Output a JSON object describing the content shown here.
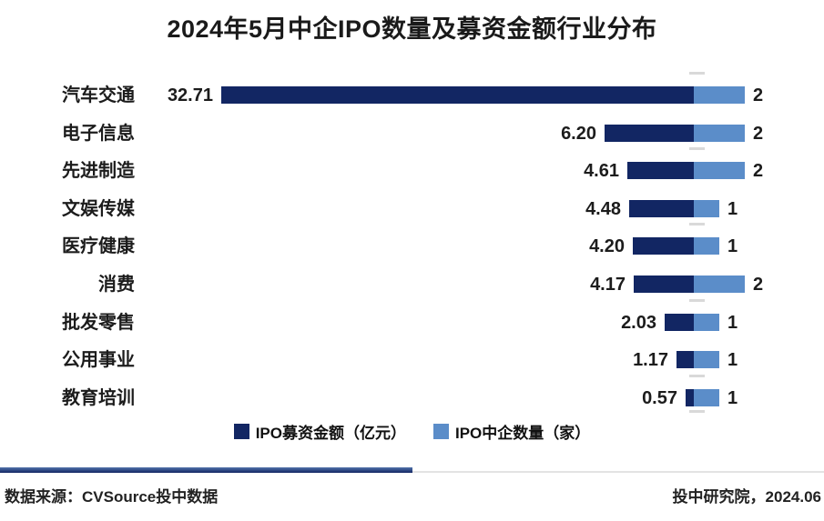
{
  "title": "2024年5月中企IPO数量及募资金额行业分布",
  "colors": {
    "amount_bar": "#122663",
    "count_bar": "#5b8dc9",
    "text": "#1c1c1c",
    "gridline": "#d9d9d9",
    "divider_navy": "#122663",
    "divider_gray": "#e3e3e3"
  },
  "chart_data": {
    "type": "bar",
    "orientation": "horizontal",
    "stacked": true,
    "title": "2024年5月中企IPO数量及募资金额行业分布",
    "categories": [
      "汽车交通",
      "电子信息",
      "先进制造",
      "文娱传媒",
      "医疗健康",
      "消费",
      "批发零售",
      "公用事业",
      "教育培训"
    ],
    "series": [
      {
        "name": "IPO募资金额（亿元）",
        "color": "#122663",
        "values": [
          32.71,
          6.2,
          4.61,
          4.48,
          4.2,
          4.17,
          2.03,
          1.17,
          0.57
        ],
        "value_labels": [
          "32.71",
          "6.20",
          "4.61",
          "4.48",
          "4.20",
          "4.17",
          "2.03",
          "1.17",
          "0.57"
        ]
      },
      {
        "name": "IPO中企数量（家）",
        "color": "#5b8dc9",
        "values": [
          2,
          2,
          2,
          1,
          1,
          2,
          1,
          1,
          1
        ],
        "value_labels": [
          "2",
          "2",
          "2",
          "1",
          "1",
          "2",
          "1",
          "1",
          "1"
        ]
      }
    ],
    "amount_axis_range": [
      0,
      32.71
    ],
    "grid": "sparse dashed vertical baseline between bar stacks",
    "legend_position": "bottom"
  },
  "legend": {
    "items": [
      {
        "label": "IPO募资金额（亿元）",
        "color": "#122663"
      },
      {
        "label": "IPO中企数量（家）",
        "color": "#5b8dc9"
      }
    ]
  },
  "footer": {
    "source": "数据来源：CVSource投中数据",
    "credit": "投中研究院，2024.06"
  }
}
